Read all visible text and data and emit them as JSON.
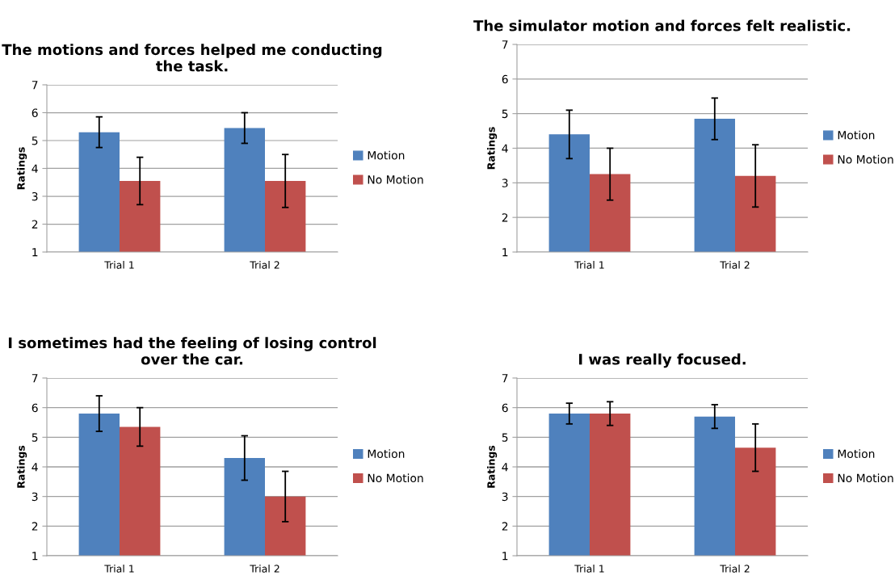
{
  "chart_data": [
    {
      "type": "bar",
      "title": "The motions and forces helped me conducting\nthe task.",
      "ylabel": "Ratings",
      "categories": [
        "Trial 1",
        "Trial 2"
      ],
      "ylim": [
        1,
        7
      ],
      "yticks": [
        1,
        2,
        3,
        4,
        5,
        6,
        7
      ],
      "grid": "y",
      "legend": "right",
      "series": [
        {
          "name": "Motion",
          "color": "#4f81bd",
          "values": [
            5.3,
            5.45
          ],
          "errors": [
            0.55,
            0.55
          ]
        },
        {
          "name": "No Motion",
          "color": "#c0504d",
          "values": [
            3.55,
            3.55
          ],
          "errors": [
            0.85,
            0.95
          ]
        }
      ]
    },
    {
      "type": "bar",
      "title": "The simulator motion and forces felt realistic.",
      "ylabel": "Ratings",
      "categories": [
        "Trial 1",
        "Trial 2"
      ],
      "ylim": [
        1,
        7
      ],
      "yticks": [
        1,
        2,
        3,
        4,
        5,
        6,
        7
      ],
      "grid": "y",
      "legend": "right",
      "series": [
        {
          "name": "Motion",
          "color": "#4f81bd",
          "values": [
            4.4,
            4.85
          ],
          "errors": [
            0.7,
            0.6
          ]
        },
        {
          "name": "No Motion",
          "color": "#c0504d",
          "values": [
            3.25,
            3.2
          ],
          "errors": [
            0.75,
            0.9
          ]
        }
      ]
    },
    {
      "type": "bar",
      "title": "I sometimes had the feeling of losing control\nover the car.",
      "ylabel": "Ratings",
      "categories": [
        "Trial 1",
        "Trial 2"
      ],
      "ylim": [
        1,
        7
      ],
      "yticks": [
        1,
        2,
        3,
        4,
        5,
        6,
        7
      ],
      "grid": "y",
      "legend": "right",
      "series": [
        {
          "name": "Motion",
          "color": "#4f81bd",
          "values": [
            5.8,
            4.3
          ],
          "errors": [
            0.6,
            0.75
          ]
        },
        {
          "name": "No Motion",
          "color": "#c0504d",
          "values": [
            5.35,
            3.0
          ],
          "errors": [
            0.65,
            0.85
          ]
        }
      ]
    },
    {
      "type": "bar",
      "title": "I was really focused.",
      "ylabel": "Ratings",
      "categories": [
        "Trial 1",
        "Trial 2"
      ],
      "ylim": [
        1,
        7
      ],
      "yticks": [
        1,
        2,
        3,
        4,
        5,
        6,
        7
      ],
      "grid": "y",
      "legend": "right",
      "series": [
        {
          "name": "Motion",
          "color": "#4f81bd",
          "values": [
            5.8,
            5.7
          ],
          "errors": [
            0.35,
            0.4
          ]
        },
        {
          "name": "No Motion",
          "color": "#c0504d",
          "values": [
            5.8,
            4.65
          ],
          "errors": [
            0.4,
            0.8
          ]
        }
      ]
    }
  ]
}
